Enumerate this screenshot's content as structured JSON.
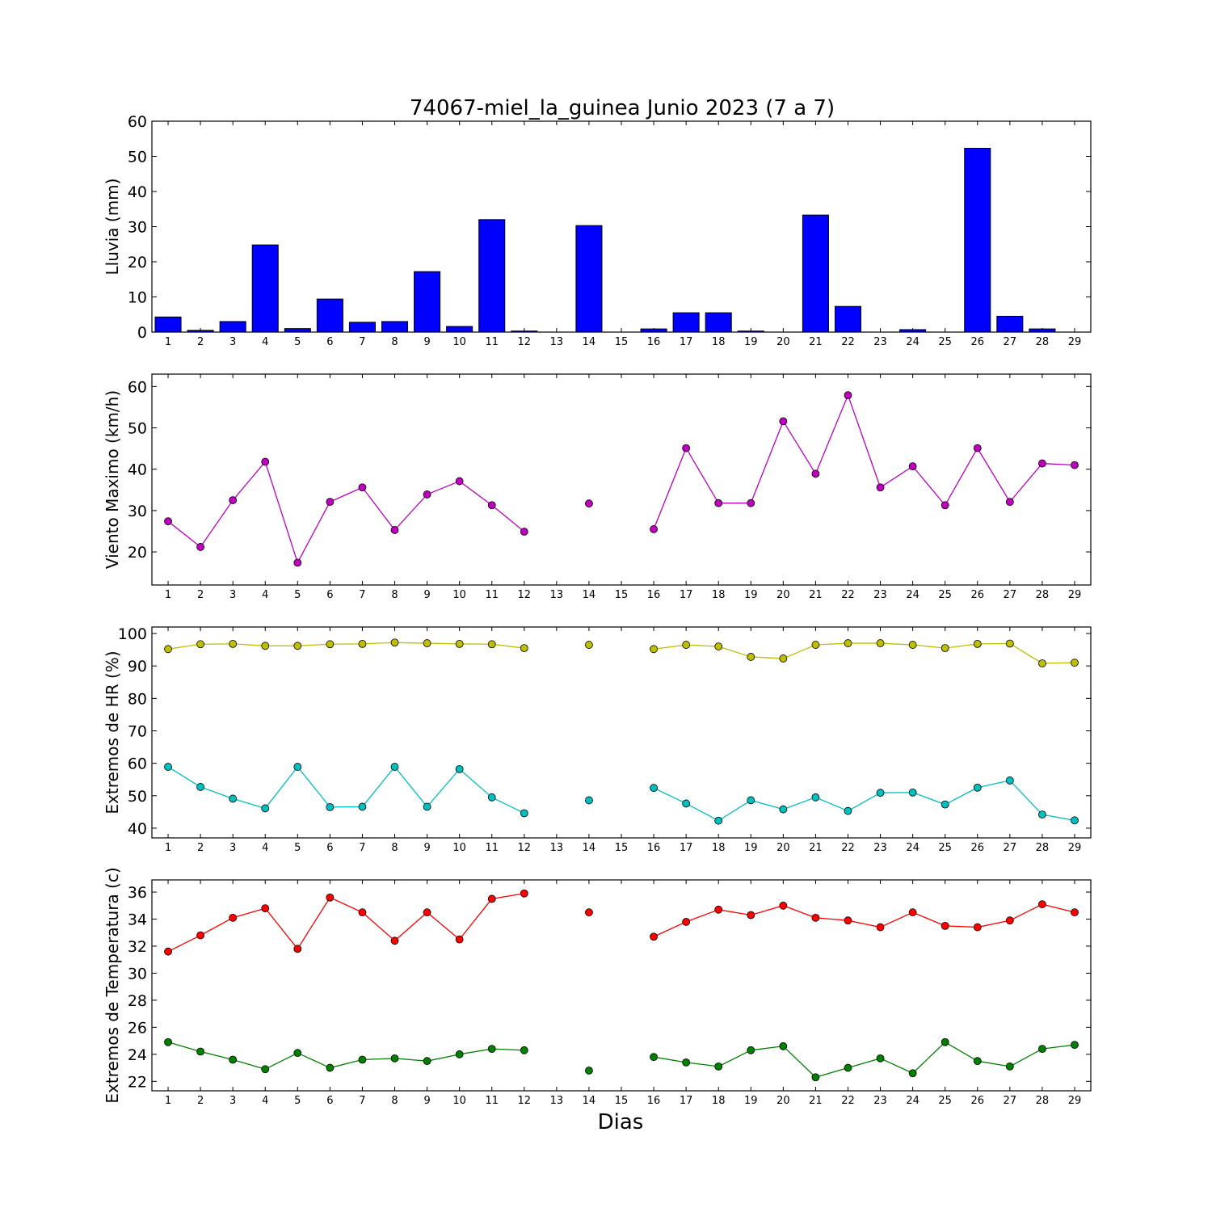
{
  "chart_data": {
    "title": "74067-miel_la_guinea Junio 2023  (7 a 7)",
    "xlabel": "Dias",
    "x_categories": [
      "1",
      "2",
      "3",
      "4",
      "5",
      "6",
      "7",
      "8",
      "9",
      "10",
      "11",
      "12",
      "13",
      "14",
      "15",
      "16",
      "17",
      "18",
      "19",
      "20",
      "21",
      "22",
      "23",
      "24",
      "25",
      "26",
      "27",
      "28",
      "29"
    ],
    "panels": [
      {
        "type": "bar",
        "ylabel": "Lluvia (mm)",
        "ylim": [
          0,
          60
        ],
        "yticks": [
          0,
          10,
          20,
          30,
          40,
          50,
          60
        ],
        "series": [
          {
            "color": "#0000ff",
            "values": [
              4.3,
              0.5,
              3.0,
              24.8,
              1.0,
              9.4,
              2.8,
              3.0,
              17.2,
              1.6,
              32.0,
              0.3,
              0,
              30.3,
              0,
              0.9,
              5.5,
              5.5,
              0.3,
              0,
              33.3,
              7.3,
              0,
              0.7,
              0,
              52.3,
              4.5,
              0.9,
              0
            ]
          }
        ]
      },
      {
        "type": "line",
        "ylabel": "Viento Maximo (km/h)",
        "ylim": [
          12,
          63
        ],
        "yticks": [
          20,
          30,
          40,
          50,
          60
        ],
        "series": [
          {
            "color": "#bf00bf",
            "values": [
              27.4,
              21.2,
              32.5,
              41.8,
              17.4,
              32.1,
              35.6,
              25.3,
              33.9,
              37.1,
              31.3,
              24.9,
              null,
              31.7,
              null,
              25.5,
              45.1,
              31.8,
              31.8,
              51.6,
              38.9,
              57.9,
              35.6,
              40.7,
              31.3,
              45.1,
              32.1,
              41.4,
              41.0
            ]
          }
        ]
      },
      {
        "type": "line",
        "ylabel": "Extremos de HR (%)",
        "ylim": [
          37,
          102
        ],
        "yticks": [
          40,
          50,
          60,
          70,
          80,
          90,
          100
        ],
        "series": [
          {
            "color": "#bfbf00",
            "values": [
              95.2,
              96.7,
              96.8,
              96.2,
              96.2,
              96.7,
              96.8,
              97.2,
              97.0,
              96.8,
              96.7,
              95.5,
              null,
              96.5,
              null,
              95.2,
              96.5,
              96.0,
              92.8,
              92.3,
              96.5,
              97.0,
              97.0,
              96.5,
              95.5,
              96.8,
              96.9,
              90.8,
              91.0
            ]
          },
          {
            "color": "#00bfbf",
            "values": [
              58.9,
              52.7,
              49.1,
              46.1,
              58.9,
              46.5,
              46.6,
              58.9,
              46.6,
              58.2,
              49.5,
              44.6,
              null,
              48.6,
              null,
              52.4,
              47.6,
              42.3,
              48.6,
              45.8,
              49.5,
              45.3,
              50.9,
              51.0,
              47.3,
              52.5,
              54.7,
              44.2,
              42.4
            ]
          }
        ]
      },
      {
        "type": "line",
        "ylabel": "Extremos de Temperatura (c)",
        "ylim": [
          21.3,
          36.9
        ],
        "yticks": [
          22,
          24,
          26,
          28,
          30,
          32,
          34,
          36
        ],
        "series": [
          {
            "color": "#ff0000",
            "values": [
              31.6,
              32.8,
              34.1,
              34.8,
              31.8,
              35.6,
              34.5,
              32.4,
              34.5,
              32.5,
              35.5,
              35.9,
              null,
              34.5,
              null,
              32.7,
              33.8,
              34.7,
              34.3,
              35.0,
              34.1,
              33.9,
              33.4,
              34.5,
              33.5,
              33.4,
              33.9,
              35.1,
              34.5
            ]
          },
          {
            "color": "#008000",
            "values": [
              24.9,
              24.2,
              23.6,
              22.9,
              24.1,
              23.0,
              23.6,
              23.7,
              23.5,
              24.0,
              24.4,
              24.3,
              null,
              22.8,
              null,
              23.8,
              23.4,
              23.1,
              24.3,
              24.6,
              22.3,
              23.0,
              23.7,
              22.6,
              24.9,
              23.5,
              23.1,
              24.4,
              24.7
            ]
          }
        ]
      }
    ]
  }
}
